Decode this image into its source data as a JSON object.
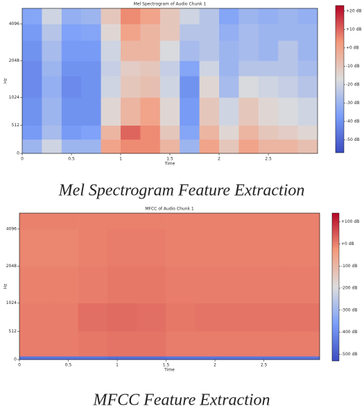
{
  "chart_data": [
    {
      "type": "heatmap",
      "title": "Mel Spectrogram of Audio Chunk 1",
      "xlabel": "Time",
      "ylabel": "Hz",
      "caption": "Mel Spectrogram Feature Extraction",
      "xlim": [
        0,
        3.0
      ],
      "ylim": [
        0,
        5512
      ],
      "yscale": "mel",
      "xticks": [
        0,
        0.5,
        1,
        1.5,
        2,
        2.5
      ],
      "yticks": [
        0,
        512,
        1024,
        2048,
        4096
      ],
      "time_edges": [
        0,
        0.2,
        0.4,
        0.6,
        0.8,
        1.0,
        1.2,
        1.4,
        1.6,
        1.8,
        2.0,
        2.2,
        2.4,
        2.6,
        2.8,
        3.0
      ],
      "freq_edges": [
        0,
        256,
        512,
        1024,
        1536,
        2048,
        3000,
        4096,
        5512
      ],
      "values": [
        [
          -30,
          -38,
          -40,
          -42,
          -42,
          -40,
          -38,
          -35
        ],
        [
          -20,
          -28,
          -30,
          -32,
          -30,
          -28,
          -25,
          -20
        ],
        [
          -30,
          -38,
          -40,
          -42,
          -40,
          -38,
          -36,
          -32
        ],
        [
          -30,
          -36,
          -40,
          -40,
          -40,
          -38,
          -35,
          -30
        ],
        [
          0,
          -5,
          -15,
          -20,
          -22,
          -20,
          -15,
          -10
        ],
        [
          5,
          10,
          -5,
          -10,
          -12,
          -5,
          0,
          5
        ],
        [
          5,
          5,
          0,
          -8,
          -10,
          -5,
          -5,
          0
        ],
        [
          -5,
          -10,
          -15,
          -20,
          -22,
          -18,
          -10,
          -10
        ],
        [
          -30,
          -35,
          -38,
          -40,
          -35,
          -28,
          -25,
          -20
        ],
        [
          0,
          -5,
          -10,
          -15,
          -20,
          -25,
          -25,
          -25
        ],
        [
          -10,
          -15,
          -20,
          -28,
          -30,
          -30,
          -32,
          -35
        ],
        [
          0,
          -5,
          -10,
          -18,
          -25,
          -28,
          -28,
          -30
        ],
        [
          -5,
          -10,
          -15,
          -20,
          -25,
          -30,
          -30,
          -32
        ],
        [
          -5,
          -12,
          -18,
          -22,
          -25,
          -25,
          -30,
          -30
        ],
        [
          -8,
          -15,
          -20,
          -25,
          -28,
          -30,
          -30,
          -32
        ]
      ],
      "colormap": [
        "#3b4cc0",
        "#7b9ff9",
        "#dddddd",
        "#f49a7b",
        "#b40426"
      ],
      "clim": [
        -57,
        23
      ],
      "colorbar_ticks": [
        {
          "value": 20,
          "label": "+20 dB"
        },
        {
          "value": 10,
          "label": "+10 dB"
        },
        {
          "value": 0,
          "label": "+0 dB"
        },
        {
          "value": -10,
          "label": "-10 dB"
        },
        {
          "value": -20,
          "label": "-20 dB"
        },
        {
          "value": -30,
          "label": "-30 dB"
        },
        {
          "value": -40,
          "label": "-40 dB"
        },
        {
          "value": -50,
          "label": "-50 dB"
        }
      ]
    },
    {
      "type": "heatmap",
      "title": "MFCC of Audio Chunk 1",
      "xlabel": "Time",
      "ylabel": "Hz",
      "caption": "MFCC Feature Extraction",
      "xlim": [
        0,
        3.07
      ],
      "ylim": [
        0,
        5512
      ],
      "yscale": "mel",
      "xticks": [
        0,
        0.5,
        1,
        1.5,
        2,
        2.5
      ],
      "yticks": [
        0,
        512,
        1024,
        2048,
        4096
      ],
      "time_edges": [
        0,
        0.3,
        0.6,
        0.9,
        1.2,
        1.5,
        1.8,
        2.1,
        2.4,
        2.7,
        3.07
      ],
      "freq_edges": [
        0,
        60,
        512,
        1024,
        2048,
        4096,
        5512
      ],
      "values": [
        [
          -450,
          5,
          5,
          0,
          -5,
          0
        ],
        [
          -450,
          5,
          5,
          0,
          -5,
          0
        ],
        [
          -450,
          10,
          20,
          5,
          0,
          0
        ],
        [
          -460,
          15,
          25,
          10,
          5,
          0
        ],
        [
          -460,
          15,
          20,
          10,
          5,
          0
        ],
        [
          -450,
          5,
          10,
          5,
          0,
          0
        ],
        [
          -450,
          5,
          15,
          5,
          0,
          0
        ],
        [
          -450,
          5,
          15,
          5,
          0,
          0
        ],
        [
          -450,
          5,
          15,
          5,
          0,
          0
        ],
        [
          -450,
          5,
          15,
          5,
          0,
          0
        ]
      ],
      "colormap": [
        "#3b4cc0",
        "#7b9ff9",
        "#dddddd",
        "#f49a7b",
        "#b40426"
      ],
      "clim": [
        -530,
        140
      ],
      "colorbar_ticks": [
        {
          "value": 100,
          "label": "+100 dB"
        },
        {
          "value": 0,
          "label": "+0 dB"
        },
        {
          "value": -100,
          "label": "-100 dB"
        },
        {
          "value": -200,
          "label": "-200 dB"
        },
        {
          "value": -300,
          "label": "-300 dB"
        },
        {
          "value": -400,
          "label": "-400 dB"
        },
        {
          "value": -500,
          "label": "-500 dB"
        }
      ]
    }
  ]
}
